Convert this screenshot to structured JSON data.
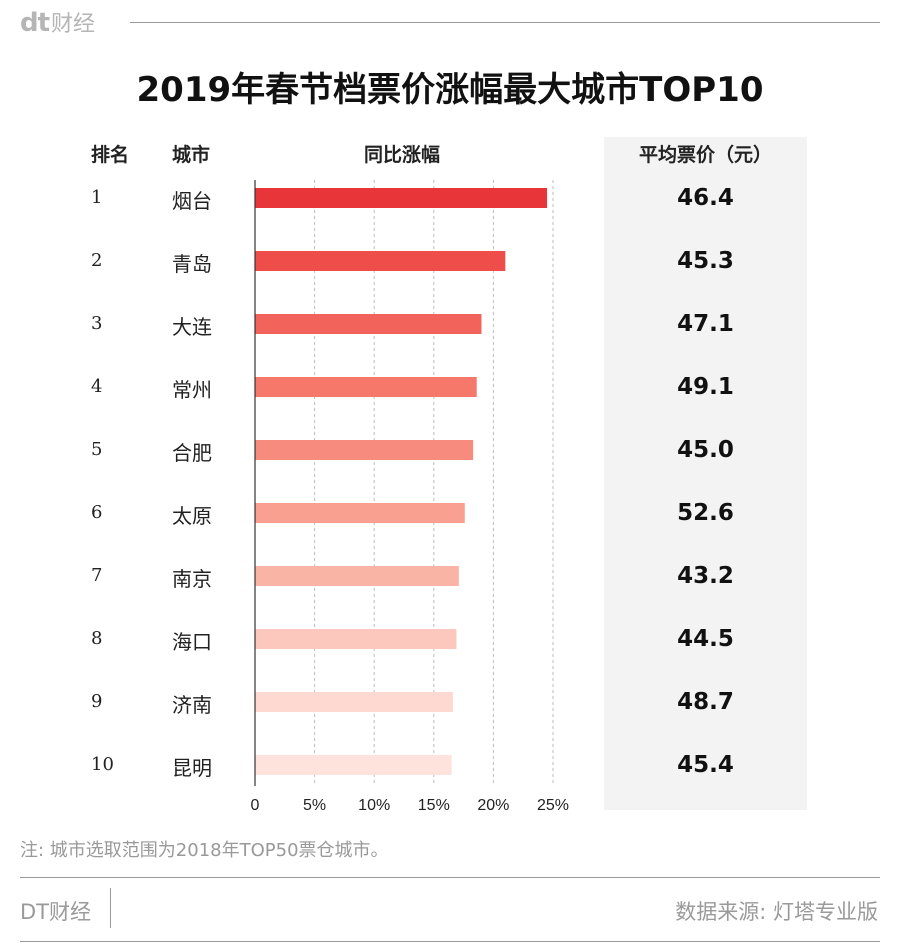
{
  "header": {
    "logo_mark": "dt",
    "logo_text": "财经"
  },
  "columns": {
    "rank": "排名",
    "city": "城市",
    "growth": "同比涨幅",
    "price": "平均票价（元）"
  },
  "rows": [
    {
      "rank": "1",
      "city": "烟台",
      "price": "46.4"
    },
    {
      "rank": "2",
      "city": "青岛",
      "price": "45.3"
    },
    {
      "rank": "3",
      "city": "大连",
      "price": "47.1"
    },
    {
      "rank": "4",
      "city": "常州",
      "price": "49.1"
    },
    {
      "rank": "5",
      "city": "合肥",
      "price": "45.0"
    },
    {
      "rank": "6",
      "city": "太原",
      "price": "52.6"
    },
    {
      "rank": "7",
      "city": "南京",
      "price": "43.2"
    },
    {
      "rank": "8",
      "city": "海口",
      "price": "44.5"
    },
    {
      "rank": "9",
      "city": "济南",
      "price": "48.7"
    },
    {
      "rank": "10",
      "city": "昆明",
      "price": "45.4"
    }
  ],
  "chart_data": {
    "type": "bar",
    "orientation": "horizontal",
    "title": "2019年春节档票价涨幅最大城市TOP10",
    "categories": [
      "烟台",
      "青岛",
      "大连",
      "常州",
      "合肥",
      "太原",
      "南京",
      "海口",
      "济南",
      "昆明"
    ],
    "values": [
      24.5,
      21.0,
      19.0,
      18.6,
      18.3,
      17.6,
      17.1,
      16.9,
      16.6,
      16.5
    ],
    "xlim": [
      0,
      25
    ],
    "x_ticks": [
      "0",
      "5%",
      "10%",
      "15%",
      "20%",
      "25%"
    ],
    "x_tick_values": [
      0,
      5,
      10,
      15,
      20,
      25
    ],
    "grid": "vertical dashed",
    "colors": [
      "#e8353a",
      "#ef4d4a",
      "#f2635c",
      "#f5786b",
      "#f78b7d",
      "#f9a091",
      "#fab4a6",
      "#fcc8bd",
      "#fdd9d1",
      "#fde3dc"
    ]
  },
  "footer": {
    "note": "注: 城市选取范围为2018年TOP50票仓城市。",
    "brand": "DT财经",
    "source": "数据来源: 灯塔专业版"
  }
}
